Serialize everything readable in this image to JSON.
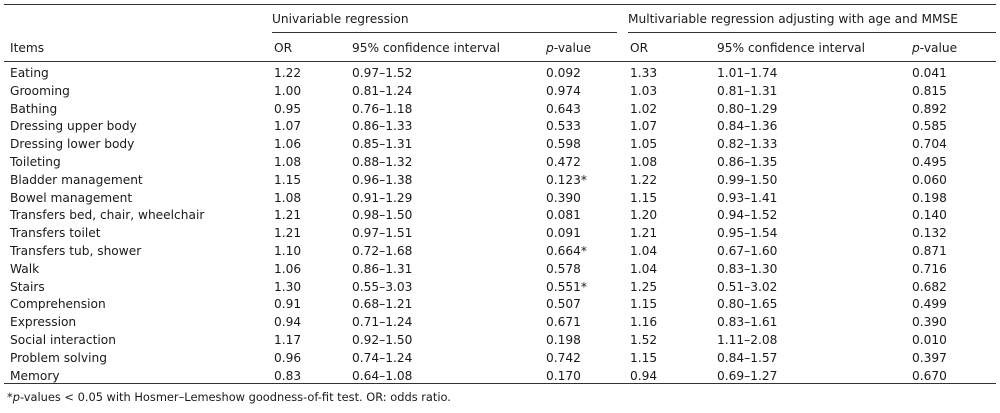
{
  "header": {
    "group_univariable": "Univariable regression",
    "group_multivariable": "Multivariable regression adjusting with age and MMSE",
    "col_items": "Items",
    "col_or": "OR",
    "col_ci": "95% confidence interval",
    "col_p_italic": "p",
    "col_p_rest": "-value"
  },
  "rows": [
    {
      "item": "Eating",
      "u_or": "1.22",
      "u_ci": "0.97–1.52",
      "u_p": "0.092",
      "m_or": "1.33",
      "m_ci": "1.01–1.74",
      "m_p": "0.041"
    },
    {
      "item": "Grooming",
      "u_or": "1.00",
      "u_ci": "0.81–1.24",
      "u_p": "0.974",
      "m_or": "1.03",
      "m_ci": "0.81–1.31",
      "m_p": "0.815"
    },
    {
      "item": "Bathing",
      "u_or": "0.95",
      "u_ci": "0.76–1.18",
      "u_p": "0.643",
      "m_or": "1.02",
      "m_ci": "0.80–1.29",
      "m_p": "0.892"
    },
    {
      "item": "Dressing upper body",
      "u_or": "1.07",
      "u_ci": "0.86–1.33",
      "u_p": "0.533",
      "m_or": "1.07",
      "m_ci": "0.84–1.36",
      "m_p": "0.585"
    },
    {
      "item": "Dressing lower body",
      "u_or": "1.06",
      "u_ci": "0.85–1.31",
      "u_p": "0.598",
      "m_or": "1.05",
      "m_ci": "0.82–1.33",
      "m_p": "0.704"
    },
    {
      "item": "Toileting",
      "u_or": "1.08",
      "u_ci": "0.88–1.32",
      "u_p": "0.472",
      "m_or": "1.08",
      "m_ci": "0.86–1.35",
      "m_p": "0.495"
    },
    {
      "item": "Bladder management",
      "u_or": "1.15",
      "u_ci": "0.96–1.38",
      "u_p": "0.123*",
      "m_or": "1.22",
      "m_ci": "0.99–1.50",
      "m_p": "0.060"
    },
    {
      "item": "Bowel management",
      "u_or": "1.08",
      "u_ci": "0.91–1.29",
      "u_p": "0.390",
      "m_or": "1.15",
      "m_ci": "0.93–1.41",
      "m_p": "0.198"
    },
    {
      "item": "Transfers bed, chair, wheelchair",
      "u_or": "1.21",
      "u_ci": "0.98–1.50",
      "u_p": "0.081",
      "m_or": "1.20",
      "m_ci": "0.94–1.52",
      "m_p": "0.140"
    },
    {
      "item": "Transfers toilet",
      "u_or": "1.21",
      "u_ci": "0.97–1.51",
      "u_p": "0.091",
      "m_or": "1.21",
      "m_ci": "0.95–1.54",
      "m_p": "0.132"
    },
    {
      "item": "Transfers tub, shower",
      "u_or": "1.10",
      "u_ci": "0.72–1.68",
      "u_p": "0.664*",
      "m_or": "1.04",
      "m_ci": "0.67–1.60",
      "m_p": "0.871"
    },
    {
      "item": "Walk",
      "u_or": "1.06",
      "u_ci": "0.86–1.31",
      "u_p": "0.578",
      "m_or": "1.04",
      "m_ci": "0.83–1.30",
      "m_p": "0.716"
    },
    {
      "item": "Stairs",
      "u_or": "1.30",
      "u_ci": "0.55–3.03",
      "u_p": "0.551*",
      "m_or": "1.25",
      "m_ci": "0.51–3.02",
      "m_p": "0.682"
    },
    {
      "item": "Comprehension",
      "u_or": "0.91",
      "u_ci": "0.68–1.21",
      "u_p": "0.507",
      "m_or": "1.15",
      "m_ci": "0.80–1.65",
      "m_p": "0.499"
    },
    {
      "item": "Expression",
      "u_or": "0.94",
      "u_ci": "0.71–1.24",
      "u_p": "0.671",
      "m_or": "1.16",
      "m_ci": "0.83–1.61",
      "m_p": "0.390"
    },
    {
      "item": "Social interaction",
      "u_or": "1.17",
      "u_ci": "0.92–1.50",
      "u_p": "0.198",
      "m_or": "1.52",
      "m_ci": "1.11–2.08",
      "m_p": "0.010"
    },
    {
      "item": "Problem solving",
      "u_or": "0.96",
      "u_ci": "0.74–1.24",
      "u_p": "0.742",
      "m_or": "1.15",
      "m_ci": "0.84–1.57",
      "m_p": "0.397"
    },
    {
      "item": "Memory",
      "u_or": "0.83",
      "u_ci": "0.64–1.08",
      "u_p": "0.170",
      "m_or": "0.94",
      "m_ci": "0.69–1.27",
      "m_p": "0.670"
    }
  ],
  "footnote": {
    "star": "*",
    "p_italic": "p",
    "text": "-values < 0.05 with Hosmer–Lemeshow goodness-of-fit test. OR: odds ratio."
  }
}
